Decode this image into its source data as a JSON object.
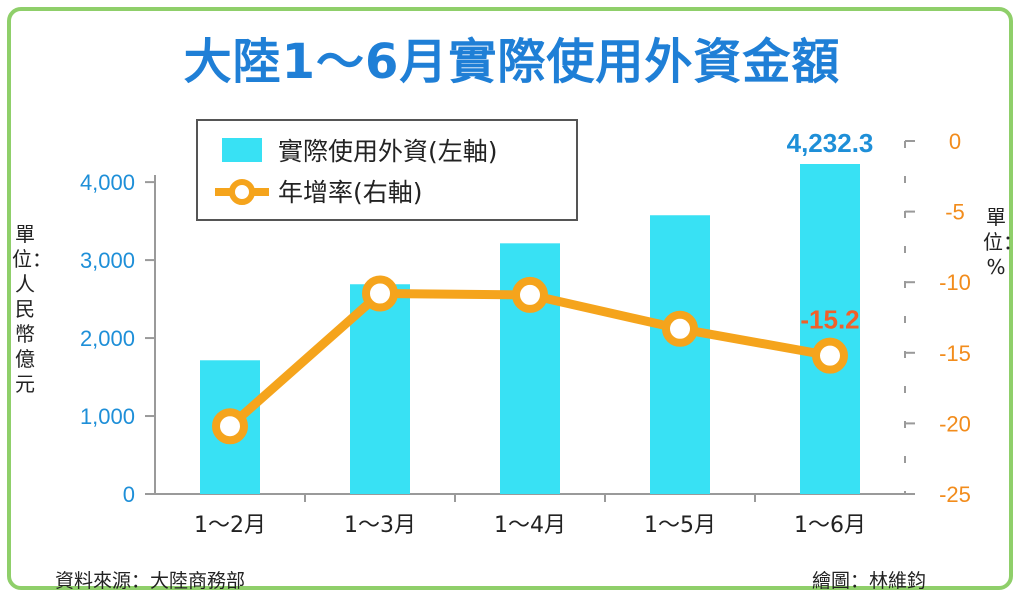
{
  "title": "大陸1～6月實際使用外資金額",
  "left_axis_unit": "單位：人民幣億元",
  "right_axis_unit": "單位：%",
  "source": "資料來源：大陸商務部",
  "credit": "繪圖：林維鈞",
  "colors": {
    "bar": "#38e1f4",
    "line": "#f5a41c",
    "left_axis": "#1e8fd8",
    "right_axis": "#f28c1c",
    "frame": "#8fcf6a"
  },
  "chart_data": {
    "type": "bar",
    "categories": [
      "1～2月",
      "1～3月",
      "1～4月",
      "1～5月",
      "1～6月"
    ],
    "series": [
      {
        "name": "實際使用外資(左軸)",
        "type": "bar",
        "axis": "left",
        "values": [
          1715,
          2690,
          3215,
          3575,
          4232.3
        ]
      },
      {
        "name": "年增率(右軸)",
        "type": "line",
        "axis": "right",
        "values": [
          -20.2,
          -10.8,
          -10.9,
          -13.3,
          -15.2
        ]
      }
    ],
    "left_axis": {
      "ylim": [
        0,
        4232.3
      ],
      "ticks": [
        0,
        1000,
        2000,
        3000,
        4000
      ],
      "tick_labels": [
        "0",
        "1,000",
        "2,000",
        "3,000",
        "4,000"
      ]
    },
    "right_axis": {
      "ylim": [
        -25,
        0
      ],
      "ticks": [
        0,
        -5,
        -10,
        -15,
        -20,
        -25
      ],
      "tick_labels": [
        "0",
        "-5",
        "-10",
        "-15",
        "-20",
        "-25"
      ]
    },
    "data_labels": [
      {
        "series": 0,
        "index": 4,
        "text": "4,232.3"
      },
      {
        "series": 1,
        "index": 4,
        "text": "-15.2"
      }
    ],
    "legend": {
      "placement": "top-left",
      "entries": [
        "實際使用外資(左軸)",
        "年增率(右軸)"
      ]
    },
    "grid": false
  }
}
